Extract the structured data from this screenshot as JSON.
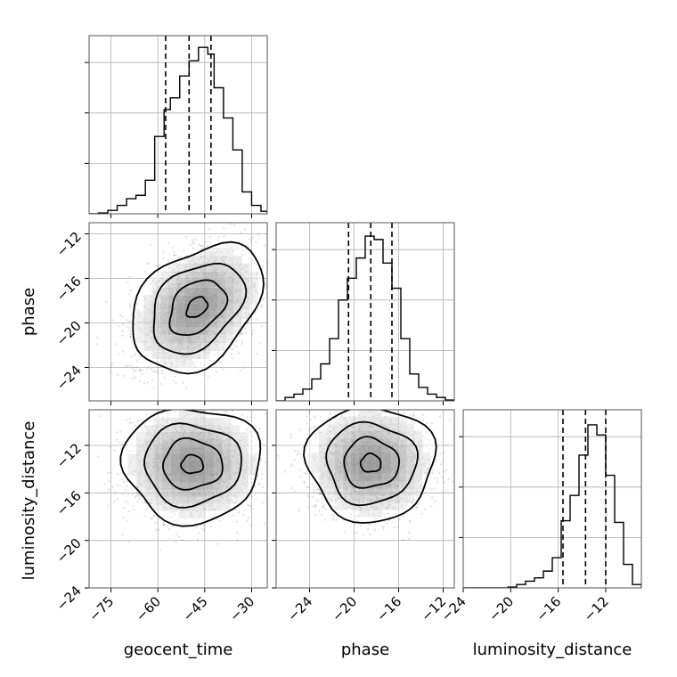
{
  "chart_data": {
    "type": "corner",
    "parameters": [
      "geocent_time",
      "phase",
      "luminosity_distance"
    ],
    "panels": [
      {
        "kind": "histogram",
        "row": 0,
        "col": 0,
        "parameter": "geocent_time",
        "xlim": [
          -82,
          -25
        ],
        "ylim": [
          0,
          1.06
        ],
        "bin_edges": [
          -82,
          -79,
          -76,
          -73,
          -70,
          -67,
          -64,
          -61,
          -58,
          -56,
          -53,
          -50,
          -47,
          -44,
          -42,
          -39,
          -36,
          -33,
          -30,
          -27,
          -25
        ],
        "counts": [
          0.0,
          0.005,
          0.02,
          0.05,
          0.09,
          0.11,
          0.2,
          0.46,
          0.62,
          0.69,
          0.82,
          0.91,
          0.99,
          0.95,
          0.75,
          0.57,
          0.38,
          0.13,
          0.05,
          0.015
        ],
        "quantile_lines": [
          -57.5,
          -50,
          -43
        ],
        "x_ticks": [
          -75,
          -60,
          -45,
          -30
        ],
        "grid": true,
        "show_tick_labels": false
      },
      {
        "kind": "2d",
        "row": 1,
        "col": 0,
        "x_parameter": "geocent_time",
        "y_parameter": "phase",
        "xlim": [
          -82,
          -25
        ],
        "ylim": [
          -27,
          -11
        ],
        "x_ticks": [
          -75,
          -60,
          -45,
          -30
        ],
        "y_ticks": [
          -12,
          -16,
          -20,
          -24
        ],
        "y_tick_labels": [
          "−12",
          "−16",
          "−20",
          "−24"
        ],
        "center": [
          -47.5,
          -18.6
        ],
        "spread": [
          9.5,
          2.6
        ],
        "correlation": 0.35,
        "grid": true
      },
      {
        "kind": "histogram",
        "row": 1,
        "col": 1,
        "parameter": "phase",
        "xlim": [
          -27,
          -11
        ],
        "ylim": [
          0,
          1.06
        ],
        "bin_edges": [
          -27,
          -26.2,
          -25.4,
          -24.6,
          -23.8,
          -23,
          -22.2,
          -21.4,
          -20.6,
          -19.8,
          -19,
          -18.2,
          -17.4,
          -16.6,
          -15.8,
          -15,
          -14.2,
          -13.4,
          -12.6,
          -11.8,
          -11
        ],
        "counts": [
          0.0,
          0.02,
          0.04,
          0.07,
          0.13,
          0.22,
          0.37,
          0.6,
          0.73,
          0.85,
          0.98,
          0.96,
          0.82,
          0.67,
          0.37,
          0.16,
          0.08,
          0.04,
          0.02,
          0.005
        ],
        "quantile_lines": [
          -20.5,
          -18.5,
          -16.6
        ],
        "x_ticks": [
          -24,
          -20,
          -16,
          -12
        ],
        "grid": true,
        "show_tick_labels": false
      },
      {
        "kind": "2d",
        "row": 2,
        "col": 0,
        "x_parameter": "geocent_time",
        "y_parameter": "luminosity_distance",
        "xlim": [
          -82,
          -25
        ],
        "ylim": [
          -24,
          -9
        ],
        "x_ticks": [
          -75,
          -60,
          -45,
          -30
        ],
        "x_tick_labels": [
          "−75",
          "−60",
          "−45",
          "−30"
        ],
        "y_ticks": [
          -12,
          -16,
          -20,
          -24
        ],
        "y_tick_labels": [
          "−12",
          "−16",
          "−20",
          "−24"
        ],
        "center": [
          -49,
          -13.6
        ],
        "spread": [
          10,
          2.2
        ],
        "correlation": 0.0,
        "grid": true
      },
      {
        "kind": "2d",
        "row": 2,
        "col": 1,
        "x_parameter": "phase",
        "y_parameter": "luminosity_distance",
        "xlim": [
          -27,
          -11
        ],
        "ylim": [
          -24,
          -9
        ],
        "x_ticks": [
          -24,
          -20,
          -16,
          -12
        ],
        "x_tick_labels": [
          "−24",
          "−20",
          "−16",
          "−12"
        ],
        "y_ticks": [
          -12,
          -16,
          -20,
          -24
        ],
        "center": [
          -18.5,
          -13.5
        ],
        "spread": [
          2.6,
          2.2
        ],
        "correlation": 0.0,
        "grid": true
      },
      {
        "kind": "histogram",
        "row": 2,
        "col": 2,
        "parameter": "luminosity_distance",
        "xlim": [
          -24,
          -9
        ],
        "ylim": [
          0,
          1.06
        ],
        "bin_edges": [
          -24,
          -23.25,
          -22.5,
          -21.75,
          -21,
          -20.25,
          -19.5,
          -18.75,
          -18,
          -17.25,
          -16.5,
          -15.75,
          -15,
          -14.25,
          -13.5,
          -12.75,
          -12,
          -11.25,
          -10.5,
          -9.75,
          -9
        ],
        "counts": [
          0.0,
          0.0,
          0.0,
          0.0,
          0.0,
          0.005,
          0.02,
          0.04,
          0.06,
          0.1,
          0.18,
          0.4,
          0.55,
          0.79,
          0.97,
          0.91,
          0.67,
          0.39,
          0.14,
          0.02
        ],
        "quantile_lines": [
          -15.6,
          -13.7,
          -12.0
        ],
        "x_ticks": [
          -24,
          -20,
          -16,
          -12
        ],
        "x_tick_labels": [
          "−24",
          "−20",
          "−16",
          "−12"
        ],
        "grid": true,
        "show_tick_labels": true
      }
    ],
    "axis_labels": {
      "x": [
        "geocent_time",
        "phase",
        "luminosity_distance"
      ],
      "y": [
        "phase",
        "luminosity_distance"
      ]
    },
    "colors": {
      "line": "#000000",
      "grid": "#b0b0b0",
      "points": "#000000",
      "fill": "#ffffff"
    }
  }
}
